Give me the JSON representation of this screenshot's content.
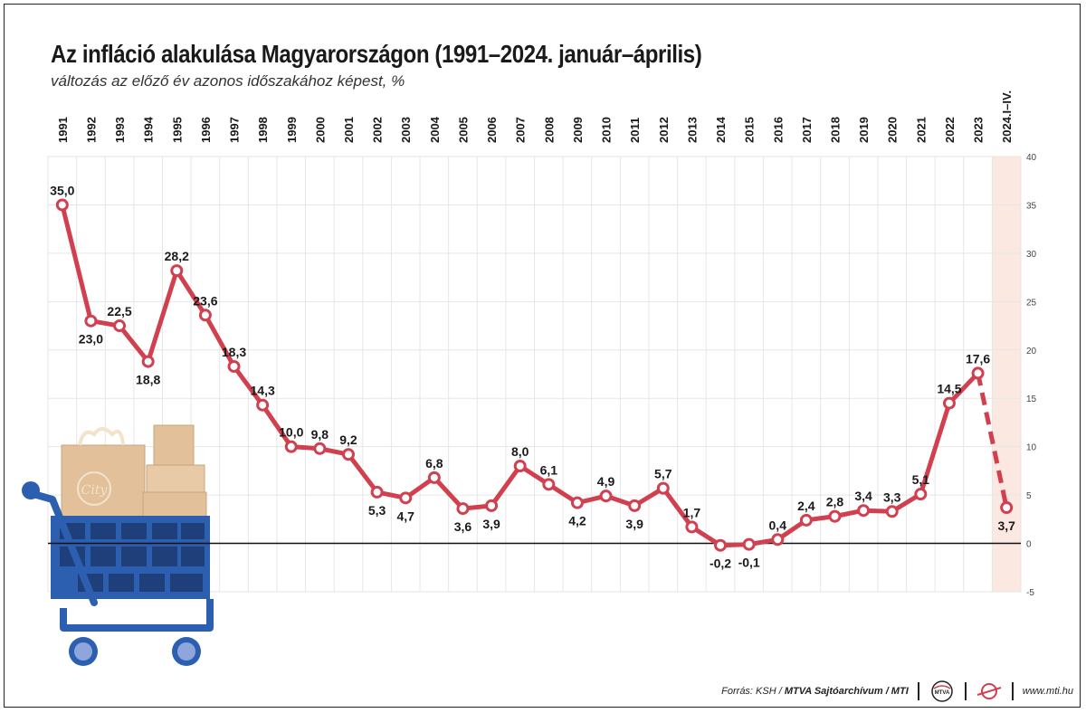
{
  "title": "Az infláció alakulása Magyarországon (1991–2024. január–április)",
  "subtitle": "változás az előző év azonos időszakához képest, %",
  "colors": {
    "line": "#d1404f",
    "highlight_band": "#fbe8e0",
    "grid": "#e6e6e6",
    "cart_blue": "#2d5fb0",
    "box": "#e2c09a"
  },
  "chart_data": {
    "type": "line",
    "x": [
      "1991",
      "1992",
      "1993",
      "1994",
      "1995",
      "1996",
      "1997",
      "1998",
      "1999",
      "2000",
      "2001",
      "2002",
      "2003",
      "2004",
      "2005",
      "2006",
      "2007",
      "2008",
      "2009",
      "2010",
      "2011",
      "2012",
      "2013",
      "2014",
      "2015",
      "2016",
      "2017",
      "2018",
      "2019",
      "2020",
      "2021",
      "2022",
      "2023",
      "2024.I–IV."
    ],
    "values": [
      35.0,
      23.0,
      22.5,
      18.8,
      28.2,
      23.6,
      18.3,
      14.3,
      10.0,
      9.8,
      9.2,
      5.3,
      4.7,
      6.8,
      3.6,
      3.9,
      8.0,
      6.1,
      4.2,
      4.9,
      3.9,
      5.7,
      1.7,
      -0.2,
      -0.1,
      0.4,
      2.4,
      2.8,
      3.4,
      3.3,
      5.1,
      14.5,
      17.6,
      3.7
    ],
    "value_labels": [
      "35,0",
      "23,0",
      "22,5",
      "18,8",
      "28,2",
      "23,6",
      "18,3",
      "14,3",
      "10,0",
      "9,8",
      "9,2",
      "5,3",
      "4,7",
      "6,8",
      "3,6",
      "3,9",
      "8,0",
      "6,1",
      "4,2",
      "4,9",
      "3,9",
      "5,7",
      "1,7",
      "-0,2",
      "-0,1",
      "0,4",
      "2,4",
      "2,8",
      "3,4",
      "3,3",
      "5,1",
      "14,5",
      "17,6",
      "3,7"
    ],
    "label_position": [
      "above",
      "below",
      "above",
      "below",
      "above",
      "above",
      "above",
      "above",
      "above",
      "above",
      "above",
      "below",
      "below",
      "above",
      "below",
      "below",
      "above",
      "above",
      "below",
      "above",
      "below",
      "above",
      "above",
      "below",
      "below",
      "above",
      "above",
      "above",
      "above",
      "above",
      "above",
      "above",
      "above",
      "below"
    ],
    "y_ticks": [
      "40",
      "35",
      "30",
      "25",
      "20",
      "15",
      "10",
      "5",
      "0",
      "-5"
    ],
    "ylim": [
      -5,
      40
    ],
    "dashed_last_segment": true,
    "highlighted_category": "2024.I–IV.",
    "grid": true
  },
  "footer": {
    "source_prefix": "Forrás: KSH / ",
    "source_bold": "MTVA Sajtóarchívum / MTI",
    "logo1_text": "MTVA",
    "url": "www.mti.hu"
  },
  "illustration": {
    "bag_text": "City"
  }
}
